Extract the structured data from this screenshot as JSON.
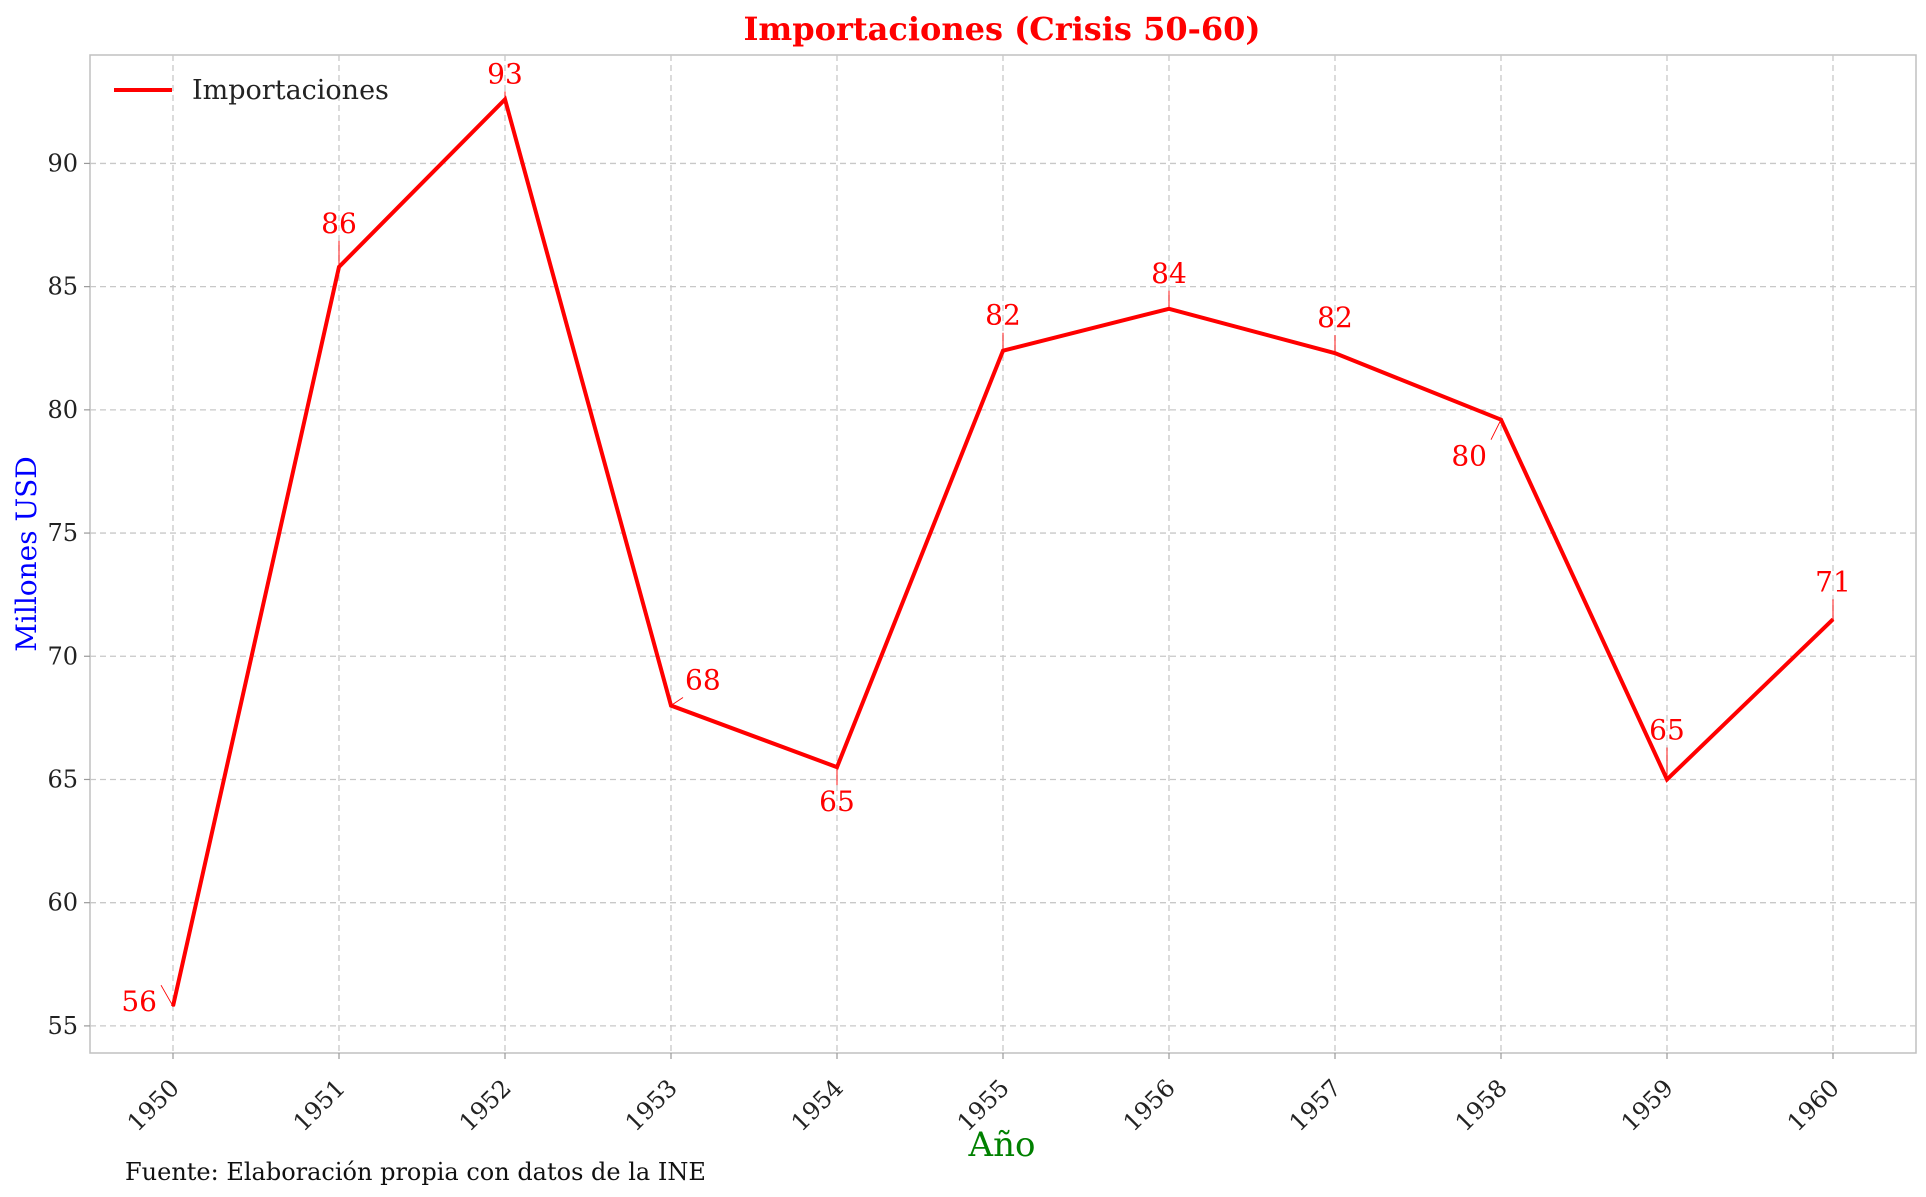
{
  "chart_data": {
    "type": "line",
    "title": "Importaciones (Crisis 50-60)",
    "xlabel": "Año",
    "ylabel": "Millones USD",
    "x": [
      1950,
      1951,
      1952,
      1953,
      1954,
      1955,
      1956,
      1957,
      1958,
      1959,
      1960
    ],
    "series": [
      {
        "name": "Importaciones",
        "values": [
          55.8,
          85.8,
          92.6,
          68.0,
          65.5,
          82.4,
          84.1,
          82.3,
          79.6,
          65.0,
          71.5
        ]
      }
    ],
    "data_labels": [
      "56",
      "86",
      "93",
      "68",
      "65",
      "82",
      "84",
      "82",
      "80",
      "65",
      "71"
    ],
    "yticks": [
      55,
      60,
      65,
      70,
      75,
      80,
      85,
      90
    ],
    "ylim": [
      53.9,
      94.4
    ],
    "xlim": [
      1949.5,
      1960.5
    ],
    "grid": true,
    "legend_position": "top-left",
    "source_note": "Fuente: Elaboración propia con datos de la INE",
    "colors": {
      "line": "#ff0000",
      "title": "#ff0000",
      "ylabel": "#0000ff",
      "xlabel": "#008000",
      "data_labels": "#ff0000",
      "grid": "#c8c8c8",
      "axes": "#c0c0c0"
    }
  }
}
